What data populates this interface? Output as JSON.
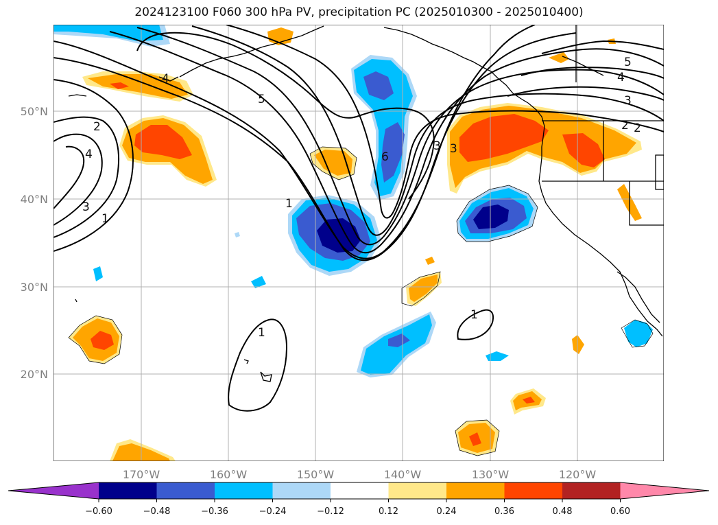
{
  "title": "2024123100 F060 300 hPa PV, precipitation PC (2025010300 - 2025010400)",
  "colors": {
    "neg_ext": "#9932cc",
    "neg60": "#00008b",
    "neg48": "#3a5bd0",
    "neg36": "#00bfff",
    "neg24": "#add8f7",
    "neutral": "#ffffff",
    "pos12": "#ffe88a",
    "pos24": "#ffa500",
    "pos36": "#ff4500",
    "pos48": "#b22222",
    "pos_ext": "#ff88aa",
    "grid": "#b0b0b0",
    "contour": "#000000"
  },
  "axes": {
    "lon_ticks": [
      "170°W",
      "160°W",
      "150°W",
      "140°W",
      "130°W",
      "120°W"
    ],
    "lat_ticks": [
      "50°N",
      "40°N",
      "30°N",
      "20°N"
    ]
  },
  "contour_labels": [
    "5",
    "4",
    "3",
    "2",
    "2",
    "3",
    "4",
    "1",
    "6",
    "1",
    "3",
    "4",
    "5",
    "3",
    "2",
    "1",
    "1"
  ],
  "colorbar": {
    "ticks": [
      "−0.60",
      "−0.48",
      "−0.36",
      "−0.24",
      "−0.12",
      "0.12",
      "0.24",
      "0.36",
      "0.48",
      "0.60"
    ],
    "levels": [
      -0.6,
      -0.48,
      -0.36,
      -0.24,
      -0.12,
      0.12,
      0.24,
      0.36,
      0.48,
      0.6
    ]
  }
}
